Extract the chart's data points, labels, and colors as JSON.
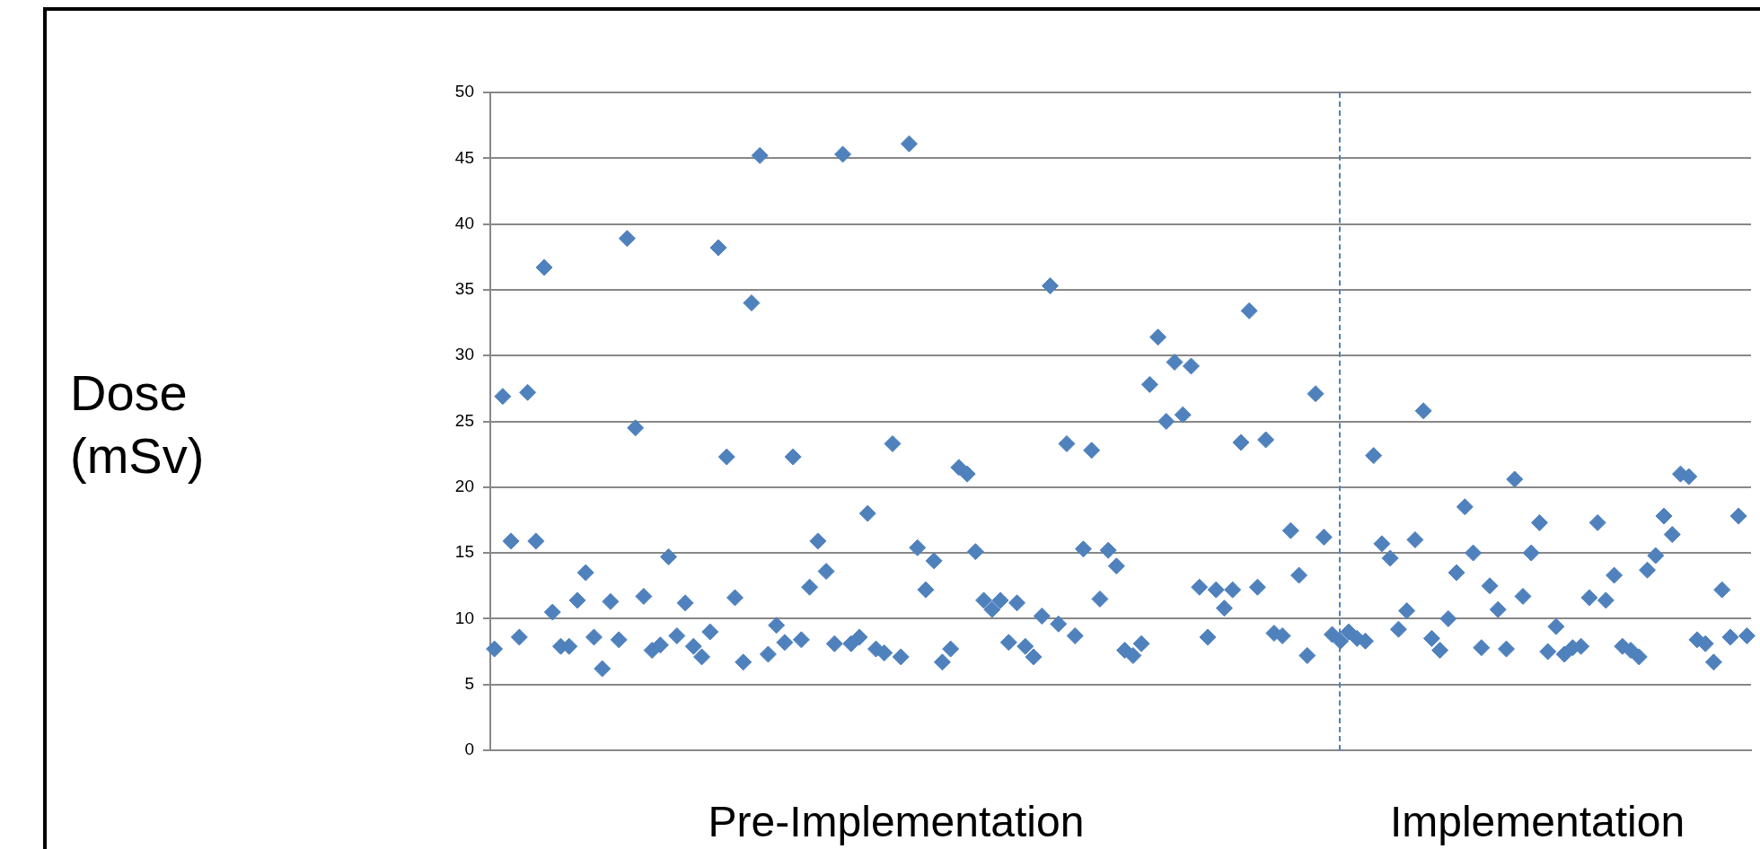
{
  "chart_data": {
    "type": "scatter",
    "ylabel": "Dose (mSv)",
    "annotations": [
      "Pre-Implementation",
      "Implementation"
    ],
    "categories": [
      null,
      null,
      null,
      null,
      null,
      null,
      null,
      null,
      null,
      null,
      null,
      null,
      null,
      null,
      null,
      null,
      null,
      null,
      null,
      null,
      null,
      null,
      null,
      null,
      null,
      null,
      null,
      null,
      null,
      null,
      null,
      null,
      null,
      null,
      null,
      null,
      null,
      null,
      null,
      null,
      null,
      null,
      null,
      null,
      null,
      null,
      null,
      null,
      null,
      null,
      null,
      null,
      null,
      null,
      null,
      null,
      null,
      null,
      null,
      null,
      null,
      null,
      null,
      null,
      null,
      null,
      null,
      null,
      null,
      null,
      null,
      null,
      null,
      null,
      null,
      null,
      null,
      null,
      null,
      null,
      null,
      null,
      null,
      null,
      null,
      null,
      null,
      null,
      null,
      null,
      null,
      null,
      null,
      null,
      null,
      null,
      null,
      null,
      null,
      null,
      null,
      null,
      null,
      null,
      null,
      null,
      null,
      null,
      null,
      null,
      null,
      null,
      null,
      null,
      null,
      null,
      null,
      null,
      null,
      null,
      null,
      null,
      null,
      null,
      null,
      null,
      null,
      null,
      null,
      null,
      null,
      null,
      null,
      null,
      null,
      null,
      null,
      null,
      null,
      null,
      null,
      null,
      null,
      null,
      null,
      null,
      null,
      null,
      null,
      null,
      null,
      null
    ],
    "series": [
      {
        "color": "#4f81bd",
        "values": [
          7.7,
          26.9,
          15.9,
          8.6,
          27.2,
          15.9,
          36.7,
          10.5,
          7.9,
          7.9,
          11.4,
          13.5,
          8.6,
          6.2,
          11.3,
          8.4,
          38.9,
          24.5,
          11.7,
          7.6,
          8.0,
          14.7,
          8.7,
          11.2,
          7.9,
          7.1,
          9.0,
          38.2,
          22.3,
          11.6,
          6.7,
          34.0,
          45.2,
          7.3,
          9.5,
          8.2,
          22.3,
          8.4,
          12.4,
          15.9,
          13.6,
          8.1,
          45.3,
          8.1,
          8.6,
          18.0,
          7.7,
          7.4,
          23.3,
          7.1,
          46.1,
          15.4,
          12.2,
          14.4,
          6.7,
          7.7,
          21.5,
          21.0,
          15.1,
          11.4,
          10.7,
          11.4,
          8.2,
          11.2,
          7.9,
          7.1,
          10.2,
          35.3,
          9.6,
          23.3,
          8.7,
          15.3,
          22.8,
          11.5,
          15.2,
          14.0,
          7.6,
          7.2,
          8.1,
          27.8,
          31.4,
          25.0,
          29.5,
          25.5,
          29.2,
          12.4,
          8.6,
          12.2,
          10.8,
          12.2,
          23.4,
          33.4,
          12.4,
          23.6,
          8.9,
          8.7,
          16.7,
          13.3,
          7.2,
          27.1,
          16.2,
          8.8,
          8.3,
          9.0,
          8.5,
          8.3,
          22.4,
          15.7,
          14.6,
          9.2,
          10.6,
          16.0,
          25.8,
          8.5,
          7.6,
          10.0,
          13.5,
          18.5,
          15.0,
          7.8,
          12.5,
          10.7,
          7.7,
          20.6,
          11.7,
          15.0,
          17.3,
          7.5,
          9.4,
          7.3,
          7.8,
          7.9,
          11.6,
          17.3,
          11.4,
          13.3,
          7.9,
          7.6,
          7.1,
          13.7,
          14.8,
          17.8,
          16.4,
          21.0,
          20.8,
          8.4,
          8.1,
          6.7,
          12.2,
          8.6,
          17.8,
          8.7
        ]
      }
    ],
    "ylim": [
      0,
      50
    ],
    "yticks": [
      0,
      5,
      10,
      15,
      20,
      25,
      30,
      35,
      40,
      45,
      50
    ],
    "grid": "y",
    "legend": false,
    "tick_labels": "y",
    "marker": "diamond"
  }
}
